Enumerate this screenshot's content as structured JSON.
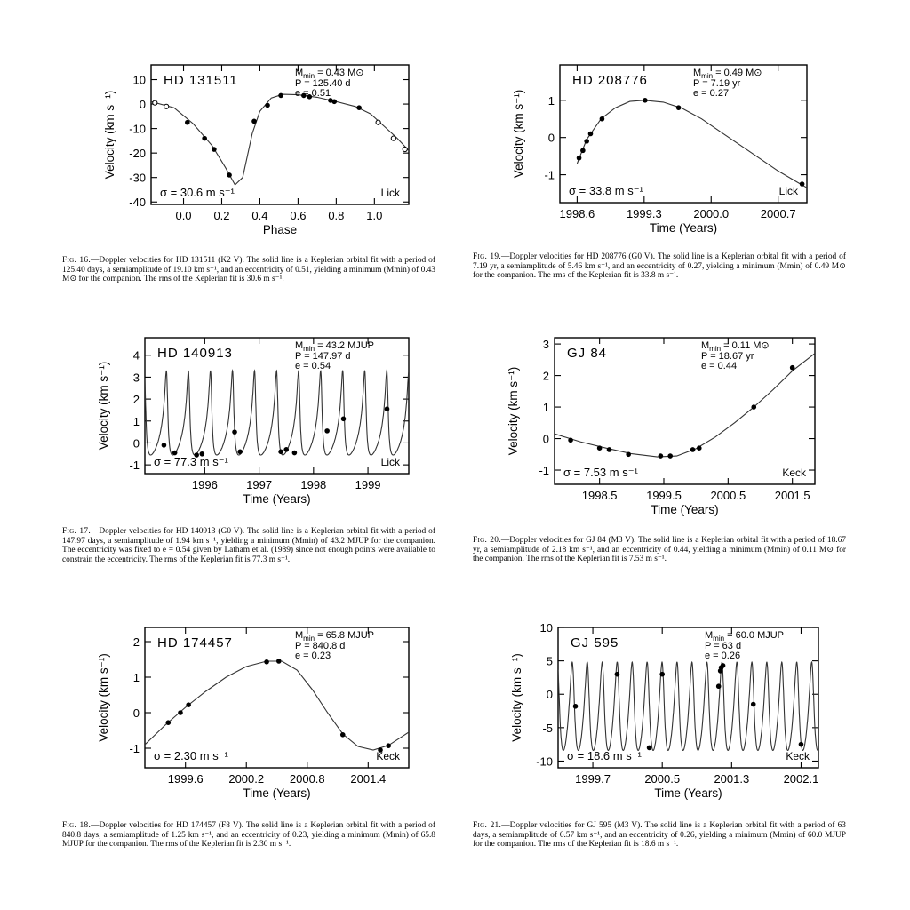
{
  "panels": [
    {
      "id": "hd131511",
      "star": "HD 131511",
      "mmin_value": "0.43",
      "mmin_unit": "M⊙",
      "period_text": "P = 125.40 d",
      "ecc_text": "e = 0.51",
      "sigma_text": "σ = 30.6 m s⁻¹",
      "observatory": "Lick",
      "xlabel": "Phase",
      "ylabel": "Velocity (km s⁻¹)",
      "xticks": [
        "0.0",
        "0.2",
        "0.4",
        "0.6",
        "0.8",
        "1.0"
      ],
      "yticks": [
        "10",
        "0",
        "-10",
        "-20",
        "-30",
        "-40"
      ],
      "caption_fig": "Fig. 16.",
      "caption_text": "—Doppler velocities for HD 131511 (K2 V). The solid line is a Keplerian orbital fit with a period of 125.40 days, a semiamplitude of 19.10 km s⁻¹, and an eccentricity of 0.51, yielding a minimum (Mmin) of 0.43 M⊙ for the companion. The rms of the Keplerian fit is 30.6 m s⁻¹.",
      "chart_data": {
        "type": "scatter",
        "xlabel": "Phase",
        "ylabel": "Velocity (km s⁻¹)",
        "xlim": [
          -0.17,
          1.18
        ],
        "ylim": [
          -41,
          16
        ],
        "filled_points": [
          [
            0.02,
            -7.5
          ],
          [
            0.11,
            -14
          ],
          [
            0.16,
            -18.5
          ],
          [
            0.24,
            -29
          ],
          [
            0.37,
            -7
          ],
          [
            0.44,
            -0.5
          ],
          [
            0.51,
            3.5
          ],
          [
            0.63,
            3.5
          ],
          [
            0.66,
            3
          ],
          [
            0.77,
            1.5
          ],
          [
            0.79,
            1
          ],
          [
            0.92,
            -1.5
          ]
        ],
        "open_points": [
          [
            -0.15,
            0.5
          ],
          [
            -0.09,
            -1
          ],
          [
            1.02,
            -7.5
          ],
          [
            1.1,
            -14
          ],
          [
            1.16,
            -18.5
          ]
        ],
        "fit": [
          [
            -0.17,
            1
          ],
          [
            -0.05,
            -1.5
          ],
          [
            0.05,
            -8
          ],
          [
            0.15,
            -17
          ],
          [
            0.22,
            -26
          ],
          [
            0.27,
            -33
          ],
          [
            0.31,
            -30
          ],
          [
            0.36,
            -12
          ],
          [
            0.4,
            -3
          ],
          [
            0.46,
            2.5
          ],
          [
            0.52,
            4
          ],
          [
            0.6,
            3.8
          ],
          [
            0.7,
            2.8
          ],
          [
            0.8,
            1
          ],
          [
            0.9,
            -1
          ],
          [
            0.98,
            -4
          ],
          [
            1.05,
            -9
          ],
          [
            1.12,
            -14
          ],
          [
            1.18,
            -19
          ]
        ]
      }
    },
    {
      "id": "hd208776",
      "star": "HD 208776",
      "mmin_value": "0.49",
      "mmin_unit": "M⊙",
      "period_text": "P = 7.19 yr",
      "ecc_text": "e = 0.27",
      "sigma_text": "σ = 33.8 m s⁻¹",
      "observatory": "Lick",
      "xlabel": "Time (Years)",
      "ylabel": "Velocity (km s⁻¹)",
      "xticks": [
        "1998.6",
        "1999.3",
        "2000.0",
        "2000.7"
      ],
      "yticks": [
        "1",
        "0",
        "-1"
      ],
      "caption_fig": "Fig. 19.",
      "caption_text": "—Doppler velocities for HD 208776 (G0 V). The solid line is a Keplerian orbital fit with a period of 7.19 yr, a semiamplitude of 5.46 km s⁻¹, and an eccentricity of 0.27, yielding a minimum (Mmin) of 0.49 M⊙ for the companion. The rms of the Keplerian fit is 33.8 m s⁻¹.",
      "chart_data": {
        "type": "scatter",
        "xlabel": "Time (Years)",
        "ylabel": "Velocity (km s⁻¹)",
        "xlim": [
          1998.42,
          2001.0
        ],
        "ylim": [
          -1.75,
          1.95
        ],
        "filled_points": [
          [
            1998.62,
            -0.55
          ],
          [
            1998.66,
            -0.35
          ],
          [
            1998.7,
            -0.1
          ],
          [
            1998.74,
            0.1
          ],
          [
            1998.86,
            0.5
          ],
          [
            1999.31,
            1.0
          ],
          [
            1999.66,
            0.8
          ],
          [
            2000.95,
            -1.25
          ]
        ],
        "fit": [
          [
            1998.6,
            -0.7
          ],
          [
            1998.7,
            -0.05
          ],
          [
            1998.85,
            0.5
          ],
          [
            1999.0,
            0.8
          ],
          [
            1999.15,
            0.97
          ],
          [
            1999.3,
            1.0
          ],
          [
            1999.5,
            0.95
          ],
          [
            1999.7,
            0.78
          ],
          [
            1999.9,
            0.5
          ],
          [
            2000.1,
            0.15
          ],
          [
            2000.3,
            -0.2
          ],
          [
            2000.5,
            -0.55
          ],
          [
            2000.7,
            -0.9
          ],
          [
            2000.9,
            -1.2
          ],
          [
            2001.0,
            -1.35
          ]
        ]
      }
    },
    {
      "id": "hd140913",
      "star": "HD 140913",
      "mmin_value": "43.2",
      "mmin_unit": "MJUP",
      "period_text": "P = 147.97 d",
      "ecc_text": "e = 0.54",
      "sigma_text": "σ = 77.3 m s⁻¹",
      "observatory": "Lick",
      "xlabel": "Time (Years)",
      "ylabel": "Velocity (km s⁻¹)",
      "xticks": [
        "1996",
        "1997",
        "1998",
        "1999"
      ],
      "yticks": [
        "4",
        "3",
        "2",
        "1",
        "0",
        "-1"
      ],
      "caption_fig": "Fig. 17.",
      "caption_text": "—Doppler velocities for HD 140913 (G0 V). The solid line is a Keplerian orbital fit with a period of 147.97 days, a semiamplitude of 1.94 km s⁻¹, yielding a minimum (Mmin) of 43.2 MJUP for the companion. The eccentricity was fixed to e = 0.54 given by Latham et al. (1989) since not enough points were available to constrain the eccentricity. The rms of the Keplerian fit is 77.3 m s⁻¹.",
      "chart_data": {
        "type": "scatter",
        "xlabel": "Time (Years)",
        "ylabel": "Velocity (km s⁻¹)",
        "xlim": [
          1994.9,
          1999.75
        ],
        "ylim": [
          -1.4,
          4.8
        ],
        "filled_points": [
          [
            1995.25,
            -0.1
          ],
          [
            1995.45,
            -0.45
          ],
          [
            1995.85,
            -0.55
          ],
          [
            1995.95,
            -0.5
          ],
          [
            1996.55,
            0.5
          ],
          [
            1996.65,
            -0.4
          ],
          [
            1997.4,
            -0.4
          ],
          [
            1997.5,
            -0.3
          ],
          [
            1997.65,
            -0.45
          ],
          [
            1998.25,
            0.55
          ],
          [
            1998.55,
            1.1
          ],
          [
            1999.35,
            1.55
          ]
        ],
        "fit_period_years": 0.4051,
        "fit_ecc": 0.54,
        "fit_range": [
          -0.55,
          3.3
        ]
      }
    },
    {
      "id": "gj84",
      "star": "GJ 84",
      "mmin_value": "0.11",
      "mmin_unit": "M⊙",
      "period_text": "P = 18.67 yr",
      "ecc_text": "e = 0.44",
      "sigma_text": "σ = 7.53 m s⁻¹",
      "observatory": "Keck",
      "xlabel": "Time (Years)",
      "ylabel": "Velocity (km s⁻¹)",
      "xticks": [
        "1998.5",
        "1999.5",
        "2000.5",
        "2001.5"
      ],
      "yticks": [
        "3",
        "2",
        "1",
        "0",
        "-1"
      ],
      "caption_fig": "Fig. 20.",
      "caption_text": "—Doppler velocities for GJ 84 (M3 V). The solid line is a Keplerian orbital fit with a period of 18.67 yr, a semiamplitude of 2.18 km s⁻¹, and an eccentricity of 0.44, yielding a minimum (Mmin) of 0.11 M⊙ for the companion. The rms of the Keplerian fit is 7.53 m s⁻¹.",
      "chart_data": {
        "type": "scatter",
        "xlabel": "Time (Years)",
        "ylabel": "Velocity (km s⁻¹)",
        "xlim": [
          1997.8,
          2001.85
        ],
        "ylim": [
          -1.45,
          3.2
        ],
        "filled_points": [
          [
            1998.05,
            -0.05
          ],
          [
            1998.5,
            -0.3
          ],
          [
            1998.65,
            -0.35
          ],
          [
            1998.95,
            -0.5
          ],
          [
            1999.45,
            -0.55
          ],
          [
            1999.6,
            -0.55
          ],
          [
            1999.95,
            -0.35
          ],
          [
            2000.05,
            -0.3
          ],
          [
            2000.9,
            1.0
          ],
          [
            2001.5,
            2.25
          ]
        ],
        "fit": [
          [
            1997.8,
            0.15
          ],
          [
            1998.2,
            -0.1
          ],
          [
            1998.6,
            -0.3
          ],
          [
            1999.0,
            -0.48
          ],
          [
            1999.4,
            -0.58
          ],
          [
            1999.7,
            -0.55
          ],
          [
            2000.0,
            -0.32
          ],
          [
            2000.3,
            0.05
          ],
          [
            2000.6,
            0.5
          ],
          [
            2000.9,
            1.0
          ],
          [
            2001.2,
            1.55
          ],
          [
            2001.5,
            2.15
          ],
          [
            2001.85,
            2.7
          ]
        ]
      }
    },
    {
      "id": "hd174457",
      "star": "HD 174457",
      "mmin_value": "65.8",
      "mmin_unit": "MJUP",
      "period_text": "P = 840.8 d",
      "ecc_text": "e = 0.23",
      "sigma_text": "σ = 2.30 m s⁻¹",
      "observatory": "Keck",
      "xlabel": "Time (Years)",
      "ylabel": "Velocity (km s⁻¹)",
      "xticks": [
        "1999.6",
        "2000.2",
        "2000.8",
        "2001.4"
      ],
      "yticks": [
        "2",
        "1",
        "0",
        "-1"
      ],
      "caption_fig": "Fig. 18.",
      "caption_text": "—Doppler velocities for HD 174457 (F8 V). The solid line is a Keplerian orbital fit with a period of 840.8 days, a semiamplitude of 1.25 km s⁻¹, and an eccentricity of 0.23, yielding a minimum (Mmin) of 65.8 MJUP for the companion. The rms of the Keplerian fit is 2.30 m s⁻¹.",
      "chart_data": {
        "type": "scatter",
        "xlabel": "Time (Years)",
        "ylabel": "Velocity (km s⁻¹)",
        "xlim": [
          1999.2,
          2001.8
        ],
        "ylim": [
          -1.55,
          2.4
        ],
        "filled_points": [
          [
            1999.43,
            -0.28
          ],
          [
            1999.55,
            0.0
          ],
          [
            1999.63,
            0.22
          ],
          [
            2000.4,
            1.43
          ],
          [
            2000.52,
            1.45
          ],
          [
            2001.15,
            -0.62
          ],
          [
            2001.52,
            -1.05
          ],
          [
            2001.6,
            -0.93
          ]
        ],
        "fit": [
          [
            1999.2,
            -0.9
          ],
          [
            1999.4,
            -0.35
          ],
          [
            1999.6,
            0.15
          ],
          [
            1999.8,
            0.6
          ],
          [
            2000.0,
            1.0
          ],
          [
            2000.2,
            1.3
          ],
          [
            2000.4,
            1.45
          ],
          [
            2000.55,
            1.45
          ],
          [
            2000.7,
            1.2
          ],
          [
            2000.85,
            0.65
          ],
          [
            2001.0,
            0.0
          ],
          [
            2001.15,
            -0.6
          ],
          [
            2001.3,
            -0.95
          ],
          [
            2001.45,
            -1.05
          ],
          [
            2001.6,
            -0.92
          ],
          [
            2001.8,
            -0.55
          ]
        ]
      }
    },
    {
      "id": "gj595",
      "star": "GJ 595",
      "mmin_value": "60.0",
      "mmin_unit": "MJUP",
      "period_text": "P = 63 d",
      "ecc_text": "e = 0.26",
      "sigma_text": "σ = 18.6 m s⁻¹",
      "observatory": "Keck",
      "xlabel": "Time (Years)",
      "ylabel": "Velocity (km s⁻¹)",
      "xticks": [
        "1999.7",
        "2000.5",
        "2001.3",
        "2002.1"
      ],
      "yticks": [
        "10",
        "5",
        "0",
        "-5",
        "-10"
      ],
      "caption_fig": "Fig. 21.",
      "caption_text": "—Doppler velocities for GJ 595 (M3 V). The solid line is a Keplerian orbital fit with a period of 63 days, a semiamplitude of 6.57 km s⁻¹, and an eccentricity of 0.26, yielding a minimum (Mmin) of 60.0 MJUP for the companion. The rms of the Keplerian fit is 18.6 m s⁻¹.",
      "chart_data": {
        "type": "scatter",
        "xlabel": "Time (Years)",
        "ylabel": "Velocity (km s⁻¹)",
        "xlim": [
          1999.3,
          2002.3
        ],
        "ylim": [
          -11,
          10
        ],
        "filled_points": [
          [
            1999.5,
            -1.8
          ],
          [
            1999.98,
            3.0
          ],
          [
            2000.35,
            -8.0
          ],
          [
            2000.5,
            3.0
          ],
          [
            2001.15,
            1.2
          ],
          [
            2001.17,
            3.5
          ],
          [
            2001.18,
            4.0
          ],
          [
            2001.2,
            4.3
          ],
          [
            2001.55,
            -1.5
          ],
          [
            2002.1,
            -7.5
          ]
        ],
        "fit_period_years": 0.1725,
        "fit_ecc": 0.26,
        "fit_range": [
          -8.4,
          4.8
        ]
      }
    }
  ]
}
